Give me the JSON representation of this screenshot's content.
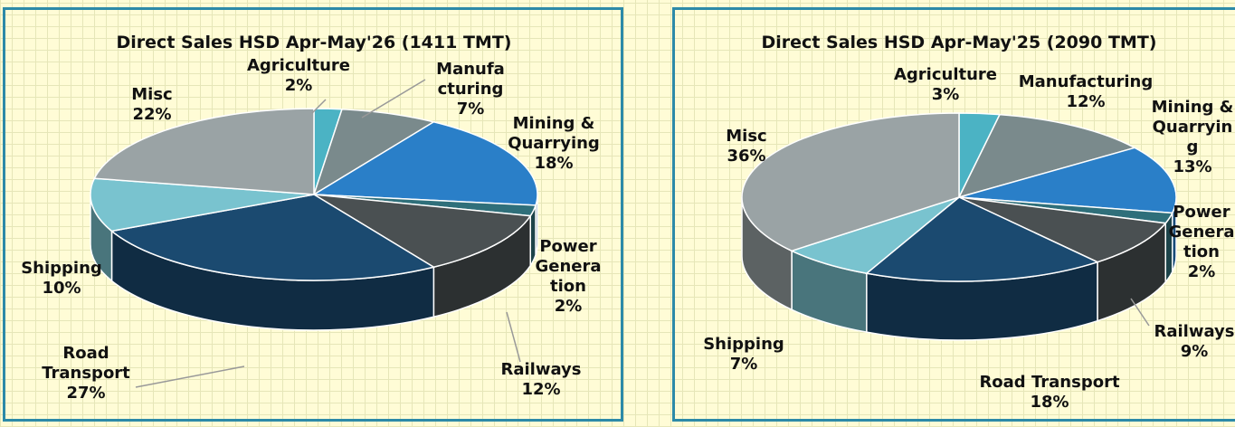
{
  "chart_data": [
    {
      "type": "pie",
      "title": "Direct Sales HSD Apr-May'26 (1411 TMT)",
      "categories": [
        "Agriculture",
        "Manufacturing",
        "Mining & Quarrying",
        "Power Generation",
        "Railways",
        "Road Transport",
        "Shipping",
        "Misc"
      ],
      "values": [
        2,
        7,
        18,
        2,
        12,
        27,
        10,
        22
      ],
      "value_labels": [
        "2%",
        "7%",
        "18%",
        "2%",
        "12%",
        "27%",
        "10%",
        "22%"
      ],
      "colors": [
        "#4bb3c4",
        "#7a8a8c",
        "#2a7fc8",
        "#2f6f7a",
        "#4a5052",
        "#1b4a70",
        "#79c3cf",
        "#9aa3a5"
      ]
    },
    {
      "type": "pie",
      "title": "Direct Sales HSD Apr-May'25 (2090 TMT)",
      "categories": [
        "Agriculture",
        "Manufacturing",
        "Mining & Quarrying",
        "Power Generation",
        "Railways",
        "Road Transport",
        "Shipping",
        "Misc"
      ],
      "values": [
        3,
        12,
        13,
        2,
        9,
        18,
        7,
        36
      ],
      "value_labels": [
        "3%",
        "12%",
        "13%",
        "2%",
        "9%",
        "18%",
        "7%",
        "36%"
      ],
      "colors": [
        "#4bb3c4",
        "#7a8a8c",
        "#2a7fc8",
        "#2f6f7a",
        "#4a5052",
        "#1b4a70",
        "#79c3cf",
        "#9aa3a5"
      ]
    }
  ]
}
